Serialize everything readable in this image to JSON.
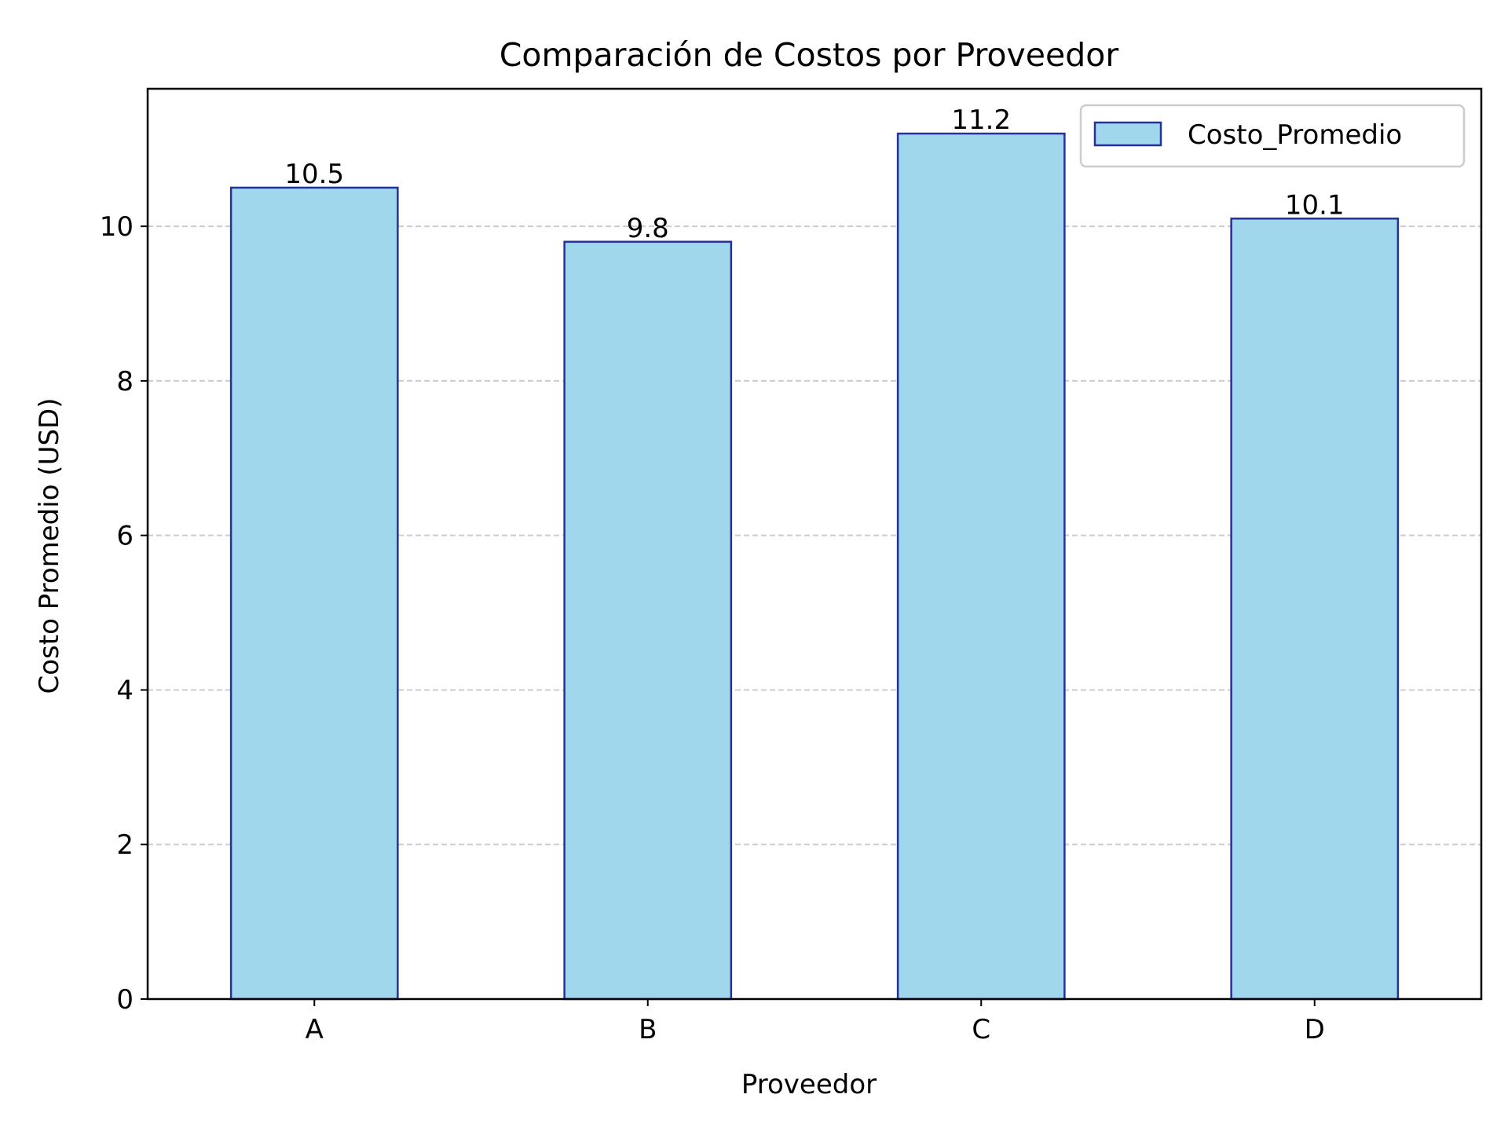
{
  "chart_data": {
    "type": "bar",
    "title": "Comparación de Costos por Proveedor",
    "xlabel": "Proveedor",
    "ylabel": "Costo Promedio (USD)",
    "categories": [
      "A",
      "B",
      "C",
      "D"
    ],
    "series": [
      {
        "name": "Costo_Promedio",
        "values": [
          10.5,
          9.8,
          11.2,
          10.1
        ],
        "data_labels": [
          "10.5",
          "9.8",
          "11.2",
          "10.1"
        ]
      }
    ],
    "ylim": [
      0,
      11.78
    ],
    "yticks": [
      0,
      2,
      4,
      6,
      8,
      10
    ],
    "ytick_labels": [
      "0",
      "2",
      "4",
      "6",
      "8",
      "10"
    ],
    "grid": {
      "axis": "y",
      "style": "dashed",
      "color": "#cccccc"
    },
    "legend": {
      "position": "top-right"
    },
    "colors": {
      "bar_fill": "#a1d7ec",
      "bar_edge": "#26309b",
      "axis": "#000000",
      "grid": "#cccccc",
      "legend_border": "#cccccc"
    }
  }
}
